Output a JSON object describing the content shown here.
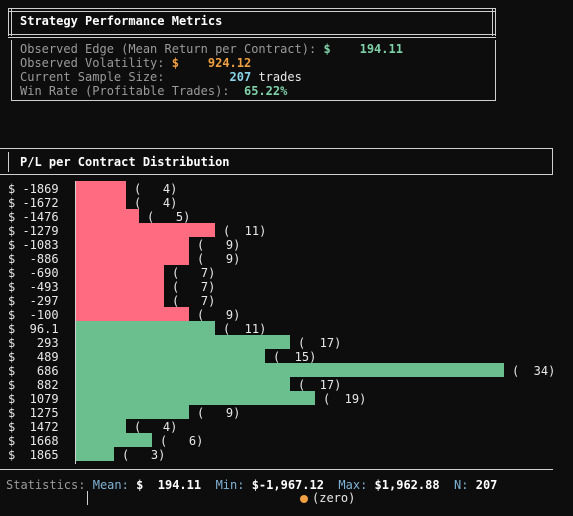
{
  "metrics_panel": {
    "title": "Strategy Performance Metrics",
    "edge_label": "Observed Edge (Mean Return per Contract):",
    "edge_currency": "$",
    "edge_value": "194.11",
    "volatility_label": "Observed Volatility:",
    "volatility_currency": "$",
    "volatility_value": "924.12",
    "sample_label": "Current Sample Size:",
    "sample_value": "207",
    "sample_unit": "trades",
    "winrate_label": "Win Rate (Profitable Trades):",
    "winrate_value": "65.22%"
  },
  "distribution_panel": {
    "title": "P/L per Contract Distribution"
  },
  "chart_data": {
    "type": "bar",
    "orientation": "horizontal",
    "title": "P/L per Contract Distribution",
    "categories": [
      "-1869",
      "-1672",
      "-1476",
      "-1279",
      "-1083",
      "-886",
      "-690",
      "-493",
      "-297",
      "-100",
      "96.1",
      "293",
      "489",
      "686",
      "882",
      "1079",
      "1275",
      "1472",
      "1668",
      "1865"
    ],
    "category_prefix": "$",
    "values": [
      4,
      4,
      5,
      11,
      9,
      9,
      7,
      7,
      7,
      9,
      11,
      17,
      15,
      34,
      17,
      19,
      9,
      4,
      6,
      3
    ],
    "count_labels": [
      "(   4)",
      "(   4)",
      "(   5)",
      "(  11)",
      "(   9)",
      "(   9)",
      "(   7)",
      "(   7)",
      "(   7)",
      "(   9)",
      "(  11)",
      "(  17)",
      "(  15)",
      "(  34)",
      "(  17)",
      "(  19)",
      "(   9)",
      "(   4)",
      "(   6)",
      "(   3)"
    ],
    "negative_color": "#ff6b81",
    "positive_color": "#6bbf8e"
  },
  "statistics": {
    "label": "Statistics:",
    "mean_label": "Mean:",
    "mean_value": "$  194.11",
    "min_label": "Min:",
    "min_value": "$-1,967.12",
    "max_label": "Max:",
    "max_value": "$1,962.88",
    "n_label": "N:",
    "n_value": "207",
    "legend_label": "(zero)",
    "legend_color": "#f0a040"
  }
}
